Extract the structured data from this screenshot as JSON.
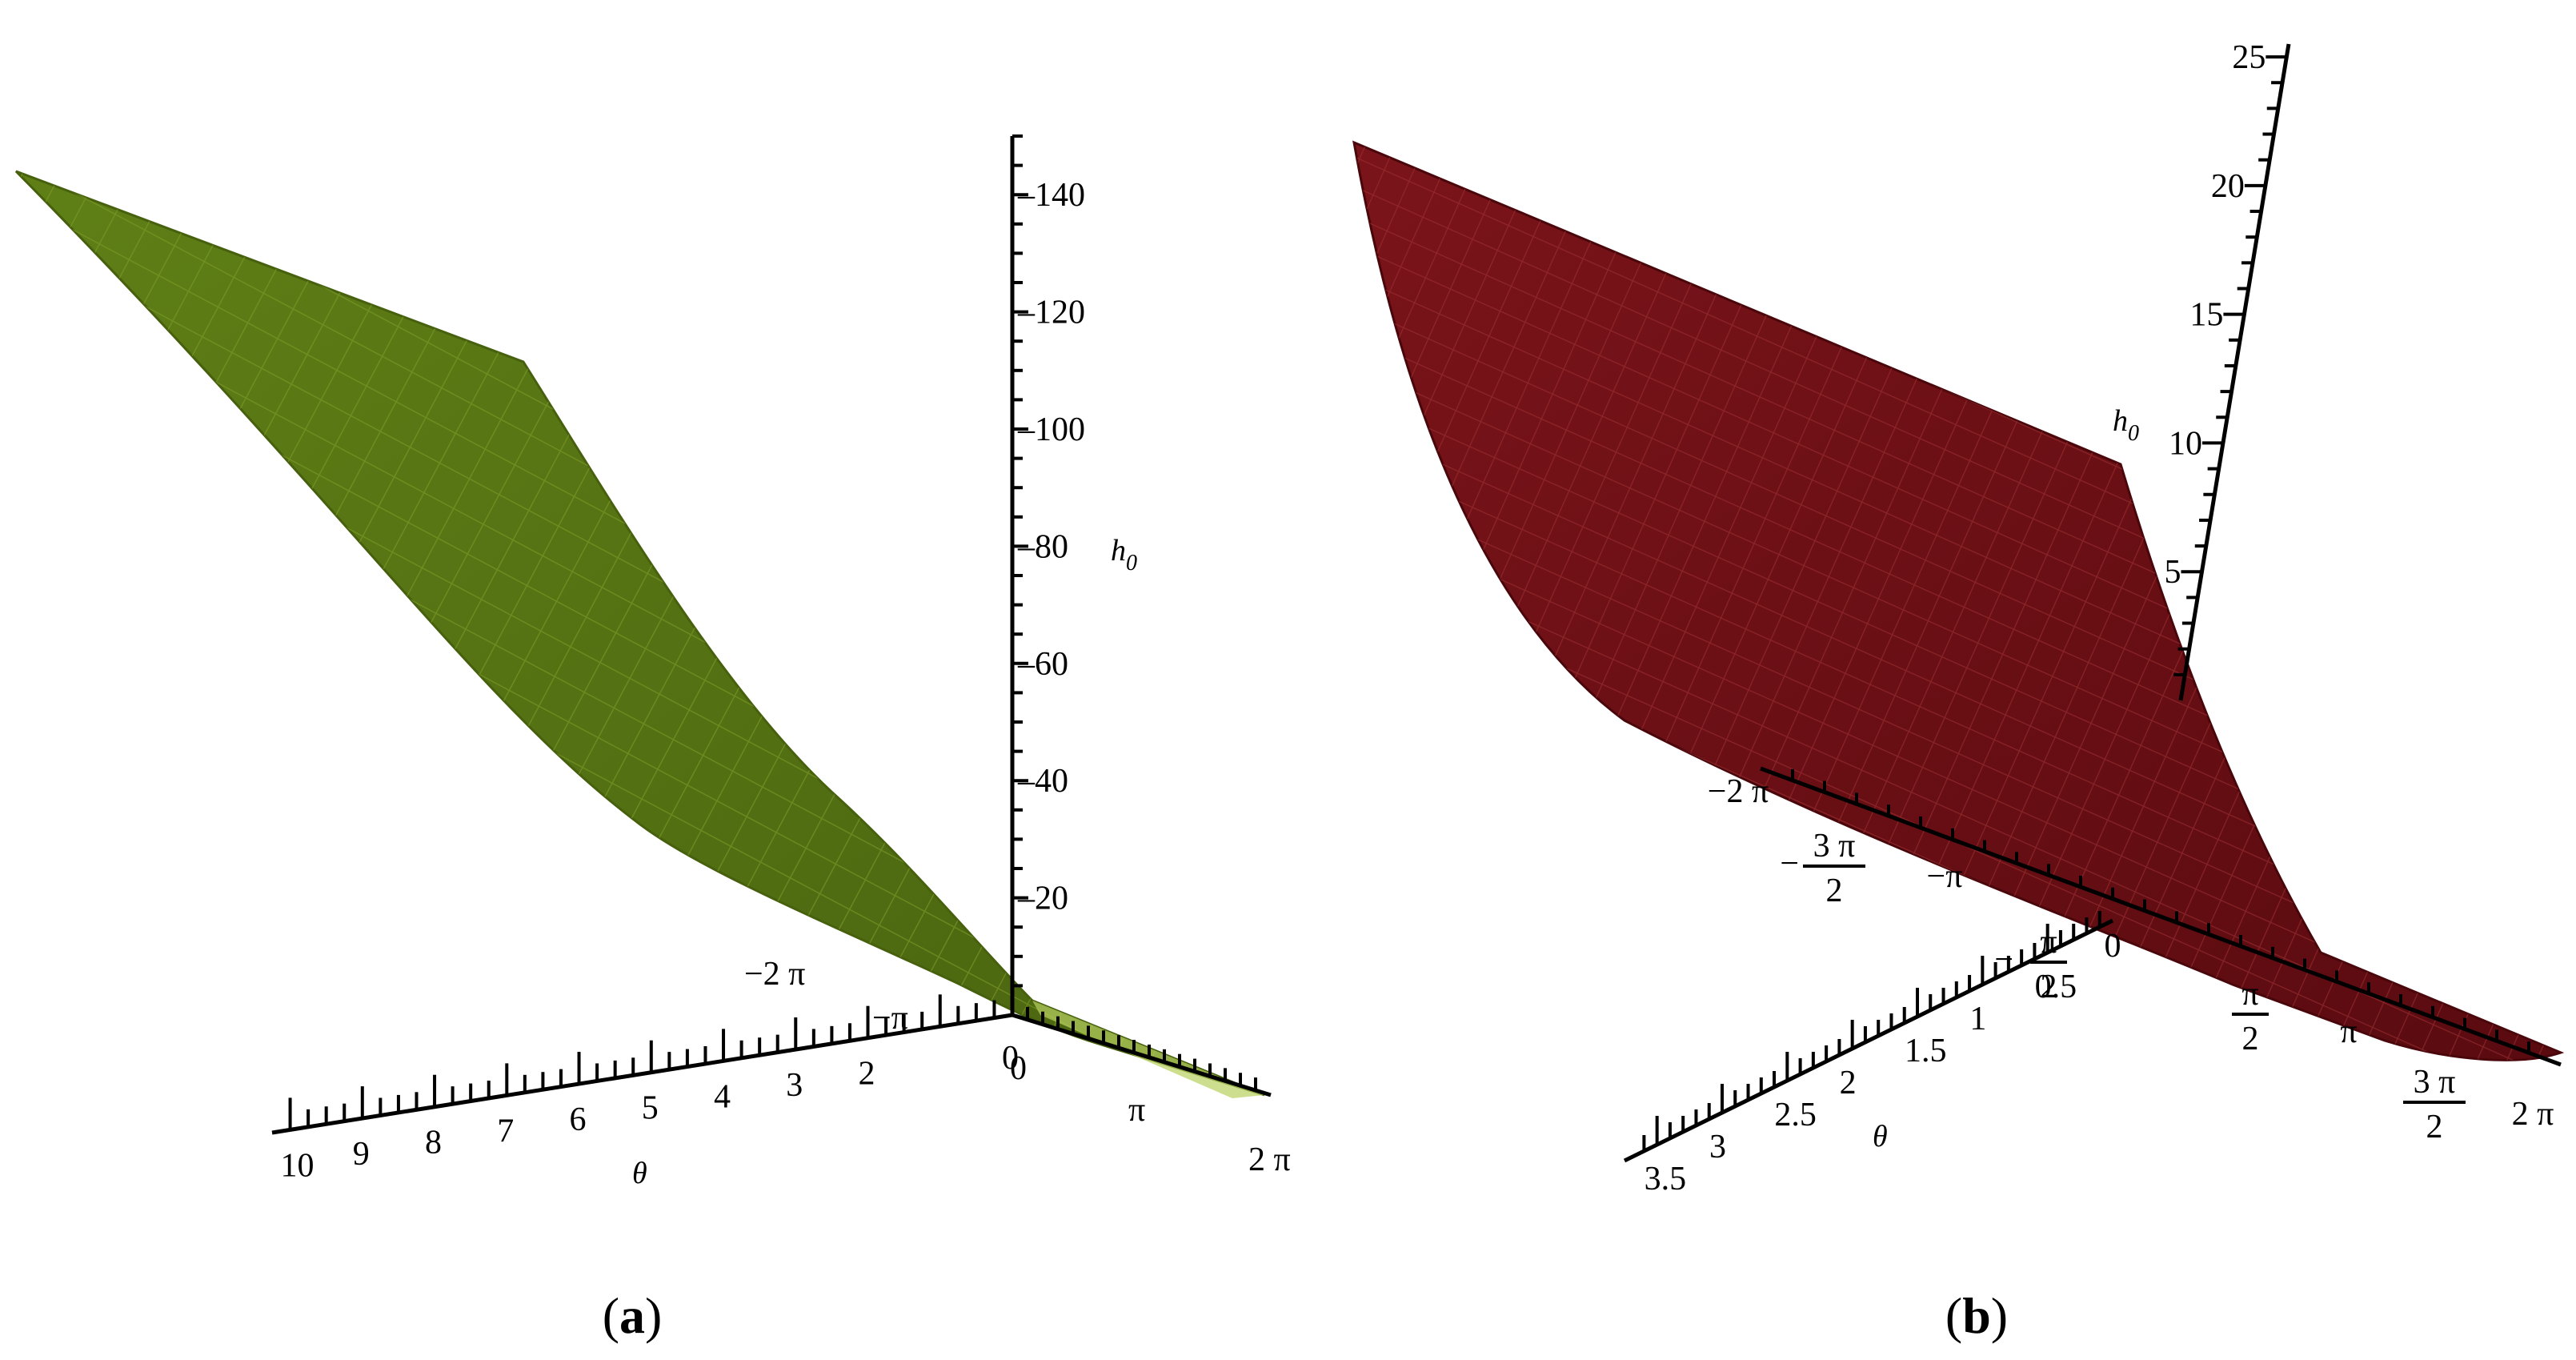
{
  "chart_data": [
    {
      "panel": "a",
      "type": "surface3d",
      "surface_color": "#5b7a14",
      "surface_edge_color": "#7f9f2a",
      "z_axis": {
        "label": "h0",
        "ticks": [
          "20",
          "40",
          "60",
          "80",
          "100",
          "120",
          "140"
        ]
      },
      "theta_axis": {
        "label": "θ",
        "ticks": [
          "2",
          "3",
          "4",
          "5",
          "6",
          "7",
          "8",
          "9",
          "10"
        ],
        "zero_label": "0"
      },
      "x_axis": {
        "ticks": [
          "−2 π",
          "−π",
          "0",
          "π",
          "2 π"
        ]
      }
    },
    {
      "panel": "b",
      "type": "surface3d",
      "surface_color": "#6b0f14",
      "surface_edge_color": "#9a2a2e",
      "z_axis": {
        "label": "h0",
        "ticks": [
          "5",
          "10",
          "15",
          "20",
          "25"
        ]
      },
      "theta_axis": {
        "label": "θ",
        "ticks": [
          "0.5",
          "1",
          "1.5",
          "2",
          "2.5",
          "3",
          "3.5"
        ]
      },
      "x_axis": {
        "ticks": [
          {
            "lead": "−",
            "text": "2 π"
          },
          {
            "lead": "−",
            "num": "3 π",
            "den": "2"
          },
          {
            "lead": "−",
            "text": "π"
          },
          {
            "lead": "−",
            "num": "π",
            "den": "2"
          },
          {
            "lead": "",
            "text": "0"
          },
          {
            "lead": "",
            "num": "π",
            "den": "2"
          },
          {
            "lead": "",
            "text": "π"
          },
          {
            "lead": "",
            "num": "3 π",
            "den": "2"
          },
          {
            "lead": "",
            "text": "2 π"
          }
        ]
      }
    }
  ],
  "captions": {
    "a": "a",
    "b": "b"
  }
}
